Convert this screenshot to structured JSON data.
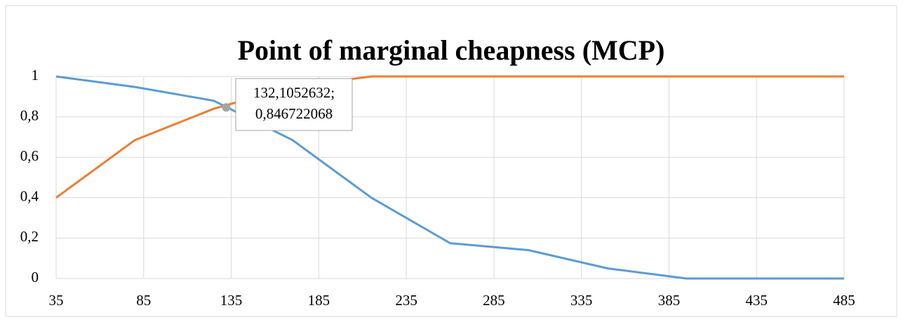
{
  "chart_data": {
    "type": "line",
    "title": "Point of marginal cheapness (MCP)",
    "x": [
      35,
      80,
      125,
      170,
      215,
      260,
      305,
      350,
      395,
      440,
      485
    ],
    "series": [
      {
        "color": "#5b9bd5",
        "values": [
          1,
          0.948,
          0.88,
          0.685,
          0.4,
          0.175,
          0.14,
          0.05,
          0,
          0,
          0
        ]
      },
      {
        "color": "#ed7d31",
        "values": [
          0.4,
          0.685,
          0.84,
          0.95,
          1,
          1,
          1,
          1,
          1,
          1,
          1
        ]
      }
    ],
    "xlim": [
      35,
      485
    ],
    "xticks": [
      35,
      85,
      135,
      185,
      235,
      285,
      335,
      385,
      435,
      485
    ],
    "ylim": [
      0,
      1
    ],
    "yticks": [
      0,
      {
        "value": 0.2,
        "label": "0,2"
      },
      {
        "value": 0.4,
        "label": "0,4"
      },
      {
        "value": 0.6,
        "label": "0,6"
      },
      {
        "value": 0.8,
        "label": "0,8"
      },
      1
    ],
    "grid": true,
    "annotation": {
      "x": 132.1052632,
      "y": 0.846722068,
      "lines": [
        "132,1052632;",
        "0,846722068"
      ]
    }
  }
}
